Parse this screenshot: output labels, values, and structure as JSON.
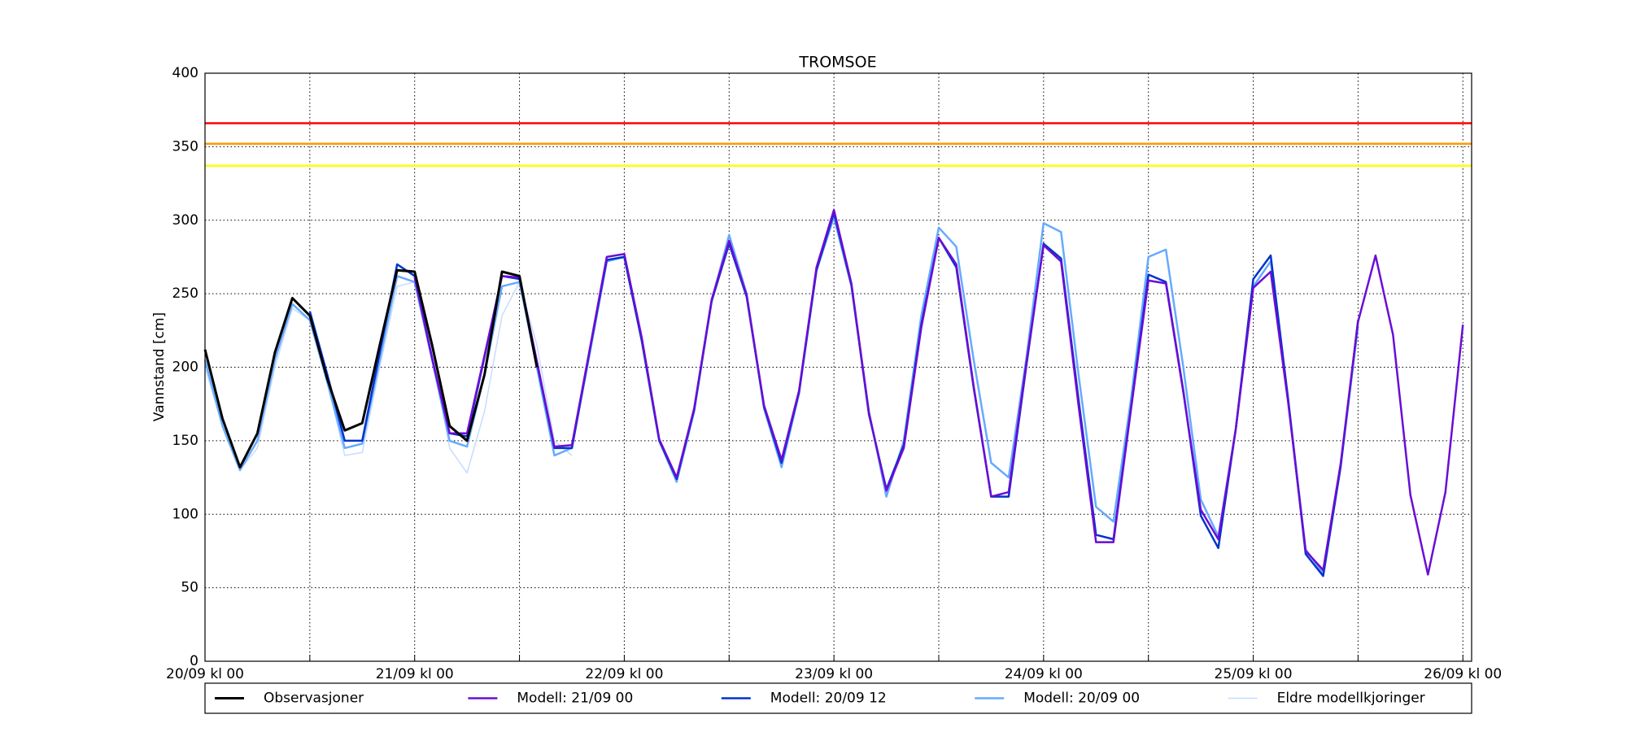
{
  "chart_data": {
    "type": "line",
    "title": "TROMSOE",
    "y_label": "Vannstand [cm]",
    "xlim": [
      0,
      145
    ],
    "ylim": [
      0,
      400
    ],
    "xticks": [
      {
        "value": 0,
        "label": "20/09 kl 00"
      },
      {
        "value": 12,
        "label": null
      },
      {
        "value": 24,
        "label": "21/09 kl 00"
      },
      {
        "value": 36,
        "label": null
      },
      {
        "value": 48,
        "label": "22/09 kl 00"
      },
      {
        "value": 60,
        "label": null
      },
      {
        "value": 72,
        "label": "23/09 kl 00"
      },
      {
        "value": 84,
        "label": null
      },
      {
        "value": 96,
        "label": "24/09 kl 00"
      },
      {
        "value": 108,
        "label": null
      },
      {
        "value": 120,
        "label": "25/09 kl 00"
      },
      {
        "value": 132,
        "label": null
      },
      {
        "value": 144,
        "label": "26/09 kl 00"
      }
    ],
    "yticks": [
      0,
      50,
      100,
      150,
      200,
      250,
      300,
      350,
      400
    ],
    "grid": true,
    "hlines": [
      {
        "value": 366,
        "color": "#ff0000"
      },
      {
        "value": 352,
        "color": "#ff9900"
      },
      {
        "value": 337,
        "color": "#ffff00"
      }
    ],
    "series": [
      {
        "name": "Observasjoner",
        "color": "#000000",
        "width": 3,
        "x": [
          0,
          2,
          4,
          6,
          8,
          10,
          12,
          14,
          16,
          18,
          20,
          22,
          24,
          26,
          28,
          30,
          32,
          34,
          36,
          38
        ],
        "values": [
          212,
          165,
          132,
          155,
          210,
          247,
          235,
          192,
          157,
          162,
          215,
          266,
          265,
          215,
          160,
          150,
          195,
          265,
          262,
          200
        ]
      },
      {
        "name": "Modell: 21/09 00",
        "color": "#6a0dd6",
        "width": 2.5,
        "x": [
          24,
          26,
          28,
          30,
          32,
          34,
          36,
          38,
          40,
          42,
          44,
          46,
          48,
          50,
          52,
          54,
          56,
          58,
          60,
          62,
          64,
          66,
          68,
          70,
          72,
          74,
          76,
          78,
          80,
          82,
          84,
          86,
          88,
          90,
          92,
          94,
          96,
          98,
          100,
          102,
          104,
          106,
          108,
          110,
          112,
          114,
          116,
          118,
          120,
          122,
          124,
          126,
          128,
          130,
          132,
          134,
          136,
          138,
          140,
          142,
          144
        ],
        "values": [
          261,
          206,
          155,
          155,
          208,
          262,
          261,
          204,
          146,
          147,
          211,
          275,
          277,
          220,
          151,
          125,
          172,
          246,
          286,
          249,
          174,
          137,
          184,
          268,
          307,
          257,
          169,
          116,
          145,
          227,
          288,
          270,
          187,
          112,
          115,
          202,
          283,
          272,
          174,
          81,
          81,
          171,
          259,
          257,
          183,
          103,
          83,
          158,
          254,
          265,
          176,
          75,
          62,
          134,
          231,
          276,
          222,
          113,
          59,
          115,
          229
        ]
      },
      {
        "name": "Modell: 20/09 12",
        "color": "#0033cc",
        "width": 2.5,
        "x": [
          12,
          14,
          16,
          18,
          20,
          22,
          24,
          26,
          28,
          30,
          32,
          34,
          36,
          38,
          40,
          42,
          44,
          46,
          48,
          50,
          52,
          54,
          56,
          58,
          60,
          62,
          64,
          66,
          68,
          70,
          72,
          74,
          76,
          78,
          80,
          82,
          84,
          86,
          88,
          90,
          92,
          94,
          96,
          98,
          100,
          102,
          104,
          106,
          108,
          110,
          112,
          114,
          116,
          118,
          120,
          122,
          124,
          126,
          128,
          130,
          132
        ],
        "values": [
          238,
          195,
          150,
          150,
          210,
          270,
          262,
          206,
          155,
          153,
          207,
          262,
          260,
          203,
          145,
          145,
          210,
          273,
          275,
          218,
          150,
          124,
          171,
          245,
          284,
          248,
          173,
          135,
          183,
          266,
          305,
          256,
          168,
          117,
          147,
          229,
          288,
          268,
          186,
          112,
          112,
          200,
          284,
          274,
          178,
          86,
          83,
          172,
          263,
          258,
          184,
          99,
          77,
          158,
          260,
          276,
          178,
          73,
          58,
          132,
          232
        ]
      },
      {
        "name": "Modell: 20/09 00",
        "color": "#66aaff",
        "width": 2.5,
        "x": [
          0,
          2,
          4,
          6,
          8,
          10,
          12,
          14,
          16,
          18,
          20,
          22,
          24,
          26,
          28,
          30,
          32,
          34,
          36,
          38,
          40,
          42,
          44,
          46,
          48,
          50,
          52,
          54,
          56,
          58,
          60,
          62,
          64,
          66,
          68,
          70,
          72,
          74,
          76,
          78,
          80,
          82,
          84,
          86,
          88,
          90,
          92,
          94,
          96,
          98,
          100,
          102,
          104,
          106,
          108,
          110,
          112,
          114,
          116,
          118,
          120,
          122,
          124,
          126,
          128,
          130,
          132
        ],
        "values": [
          205,
          160,
          130,
          150,
          205,
          243,
          232,
          190,
          145,
          148,
          205,
          262,
          258,
          205,
          150,
          146,
          195,
          255,
          258,
          200,
          140,
          145,
          208,
          272,
          275,
          218,
          150,
          122,
          170,
          245,
          290,
          250,
          172,
          132,
          182,
          266,
          302,
          255,
          170,
          112,
          150,
          235,
          295,
          282,
          205,
          135,
          125,
          205,
          298,
          292,
          195,
          105,
          95,
          178,
          275,
          280,
          200,
          110,
          85,
          158,
          255,
          272,
          178,
          76,
          60,
          132,
          228
        ]
      },
      {
        "name": "Eldre modellkjoringer",
        "color": "#c6dcff",
        "width": 1.5,
        "x": [
          0,
          2,
          4,
          6,
          8,
          10,
          12,
          14,
          16,
          18,
          20,
          22,
          24,
          26,
          28,
          30,
          32,
          34,
          36,
          38,
          40,
          42
        ],
        "values": [
          200,
          160,
          130,
          145,
          200,
          240,
          232,
          190,
          140,
          142,
          200,
          255,
          258,
          210,
          145,
          128,
          170,
          235,
          258,
          215,
          150,
          140
        ]
      }
    ]
  }
}
